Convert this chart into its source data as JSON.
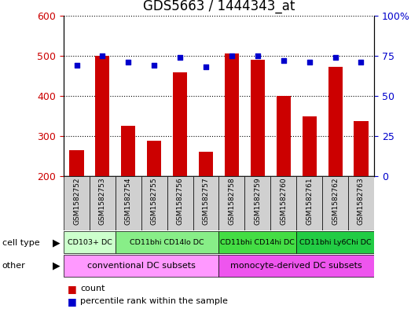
{
  "title": "GDS5663 / 1444343_at",
  "samples": [
    "GSM1582752",
    "GSM1582753",
    "GSM1582754",
    "GSM1582755",
    "GSM1582756",
    "GSM1582757",
    "GSM1582758",
    "GSM1582759",
    "GSM1582760",
    "GSM1582761",
    "GSM1582762",
    "GSM1582763"
  ],
  "counts": [
    265,
    500,
    325,
    288,
    458,
    260,
    505,
    490,
    400,
    348,
    473,
    338
  ],
  "percentile_ranks": [
    69,
    75,
    71,
    69,
    74,
    68,
    75,
    75,
    72,
    71,
    74,
    71
  ],
  "ylim_left": [
    200,
    600
  ],
  "ylim_right": [
    0,
    100
  ],
  "yticks_left": [
    200,
    300,
    400,
    500,
    600
  ],
  "yticks_right": [
    0,
    25,
    50,
    75,
    100
  ],
  "ytick_labels_right": [
    "0",
    "25",
    "50",
    "75",
    "100%"
  ],
  "bar_color": "#cc0000",
  "dot_color": "#0000cc",
  "bar_bottom": 200,
  "ct_groups": [
    {
      "label": "CD103+ DC",
      "start": 0,
      "end": 2,
      "color": "#ccffcc"
    },
    {
      "label": "CD11bhi CD14lo DC",
      "start": 2,
      "end": 6,
      "color": "#88ee88"
    },
    {
      "label": "CD11bhi CD14hi DC",
      "start": 6,
      "end": 9,
      "color": "#44dd44"
    },
    {
      "label": "CD11bhi Ly6Chi DC",
      "start": 9,
      "end": 12,
      "color": "#22cc44"
    }
  ],
  "ot_groups": [
    {
      "label": "conventional DC subsets",
      "start": 0,
      "end": 6,
      "color": "#ff99ff"
    },
    {
      "label": "monocyte-derived DC subsets",
      "start": 6,
      "end": 12,
      "color": "#ee55ee"
    }
  ],
  "cell_type_row_label": "cell type",
  "other_row_label": "other",
  "legend_count_label": "count",
  "legend_percentile_label": "percentile rank within the sample",
  "title_fontsize": 12,
  "tick_label_fontsize": 9,
  "bar_width": 0.55
}
